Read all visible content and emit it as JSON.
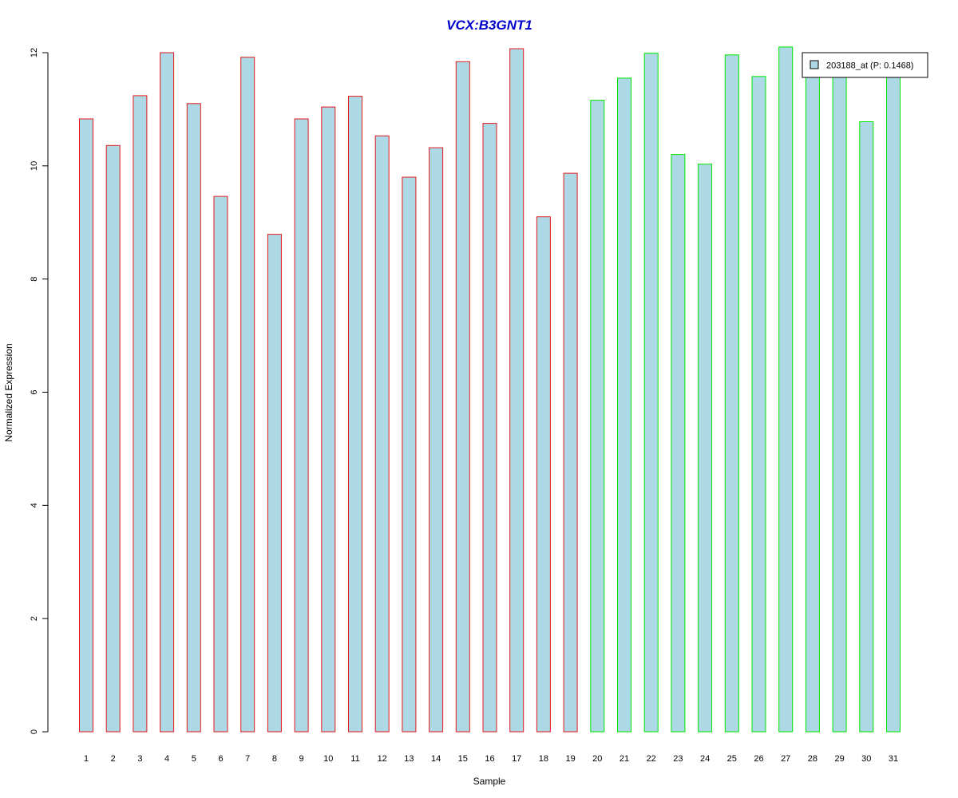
{
  "chart_data": {
    "type": "bar",
    "title": "VCX:B3GNT1",
    "xlabel": "Sample",
    "ylabel": "Normalized Expression",
    "ylim": [
      0,
      12
    ],
    "yticks": [
      0,
      2,
      4,
      6,
      8,
      10,
      12
    ],
    "grid": false,
    "categories": [
      "1",
      "2",
      "3",
      "4",
      "5",
      "6",
      "7",
      "8",
      "9",
      "10",
      "11",
      "12",
      "13",
      "14",
      "15",
      "16",
      "17",
      "18",
      "19",
      "20",
      "21",
      "22",
      "23",
      "24",
      "25",
      "26",
      "27",
      "28",
      "29",
      "30",
      "31"
    ],
    "values": [
      10.83,
      10.36,
      11.24,
      12.0,
      11.1,
      9.46,
      11.92,
      8.79,
      10.83,
      11.04,
      11.23,
      10.53,
      9.8,
      10.32,
      11.84,
      10.75,
      12.07,
      9.1,
      9.87,
      11.16,
      11.55,
      11.99,
      10.2,
      10.03,
      11.96,
      11.58,
      12.1,
      11.7,
      11.7,
      10.78,
      11.7
    ],
    "groups": [
      1,
      1,
      1,
      1,
      1,
      1,
      1,
      1,
      1,
      1,
      1,
      1,
      1,
      1,
      1,
      1,
      1,
      1,
      1,
      2,
      2,
      2,
      2,
      2,
      2,
      2,
      2,
      2,
      2,
      2,
      2
    ],
    "group_colors": {
      "1": "#e31a1c",
      "2": "#00e600"
    },
    "fill_color": "#add8e6",
    "title_color": "#0000cc",
    "legend": {
      "position": "top-right",
      "entries": [
        {
          "label": "203188_at (P: 0.1468)",
          "color": "#add8e6"
        }
      ]
    }
  }
}
